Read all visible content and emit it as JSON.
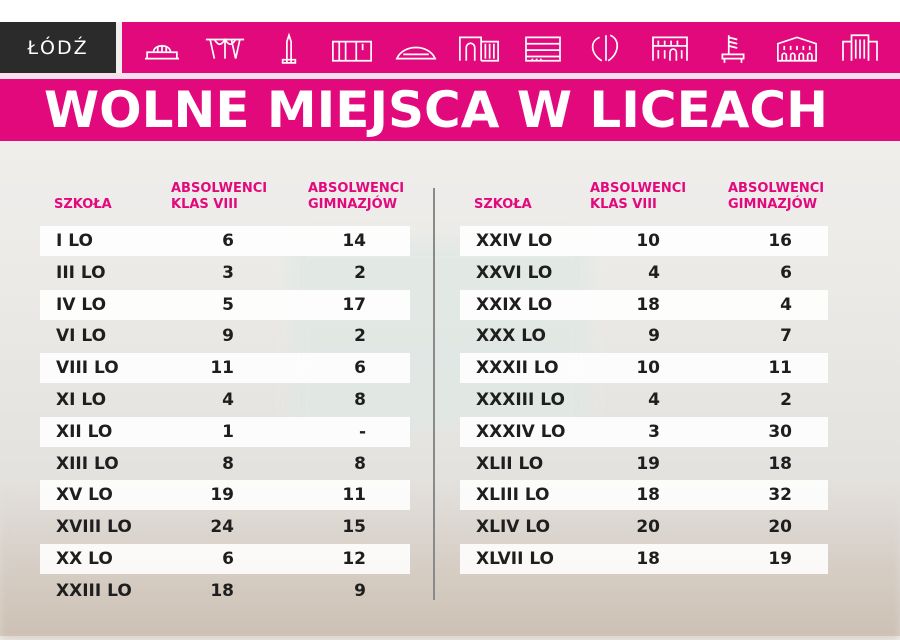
{
  "logo_text": "ŁÓDŹ",
  "header_icons": [
    "railway-station-icon",
    "canopy-icon",
    "monument-icon",
    "factory-icon",
    "arena-icon",
    "gate-building-icon",
    "stacked-building-icon",
    "heart-sculpture-icon",
    "palace-icon",
    "piano-sculpture-icon",
    "manor-icon",
    "tower-block-icon"
  ],
  "accent_color": "#e2097d",
  "title": "WOLNE MIEJSCA W LICEACH",
  "columns": {
    "school": "SZKOŁA",
    "grade8_line1": "ABSOLWENCI",
    "grade8_line2": "KLAS VIII",
    "gym_line1": "ABSOLWENCI",
    "gym_line2": "GIMNAZJÓW"
  },
  "left_table": [
    {
      "school": "I LO",
      "grade8": "6",
      "gym": "14"
    },
    {
      "school": "III LO",
      "grade8": "3",
      "gym": "2"
    },
    {
      "school": "IV LO",
      "grade8": "5",
      "gym": "17"
    },
    {
      "school": "VI LO",
      "grade8": "9",
      "gym": "2"
    },
    {
      "school": "VIII LO",
      "grade8": "11",
      "gym": "6"
    },
    {
      "school": "XI LO",
      "grade8": "4",
      "gym": "8"
    },
    {
      "school": "XII LO",
      "grade8": "1",
      "gym": "-"
    },
    {
      "school": "XIII LO",
      "grade8": "8",
      "gym": "8"
    },
    {
      "school": "XV LO",
      "grade8": "19",
      "gym": "11"
    },
    {
      "school": "XVIII LO",
      "grade8": "24",
      "gym": "15"
    },
    {
      "school": "XX LO",
      "grade8": "6",
      "gym": "12"
    },
    {
      "school": "XXIII LO",
      "grade8": "18",
      "gym": "9"
    }
  ],
  "right_table": [
    {
      "school": "XXIV LO",
      "grade8": "10",
      "gym": "16"
    },
    {
      "school": "XXVI LO",
      "grade8": "4",
      "gym": "6"
    },
    {
      "school": "XXIX LO",
      "grade8": "18",
      "gym": "4"
    },
    {
      "school": "XXX LO",
      "grade8": "9",
      "gym": "7"
    },
    {
      "school": "XXXII LO",
      "grade8": "10",
      "gym": "11"
    },
    {
      "school": "XXXIII LO",
      "grade8": "4",
      "gym": "2"
    },
    {
      "school": "XXXIV LO",
      "grade8": "3",
      "gym": "30"
    },
    {
      "school": "XLII LO",
      "grade8": "19",
      "gym": "18"
    },
    {
      "school": "XLIII LO",
      "grade8": "18",
      "gym": "32"
    },
    {
      "school": "XLIV LO",
      "grade8": "20",
      "gym": "20"
    },
    {
      "school": "XLVII LO",
      "grade8": "18",
      "gym": "19"
    }
  ]
}
